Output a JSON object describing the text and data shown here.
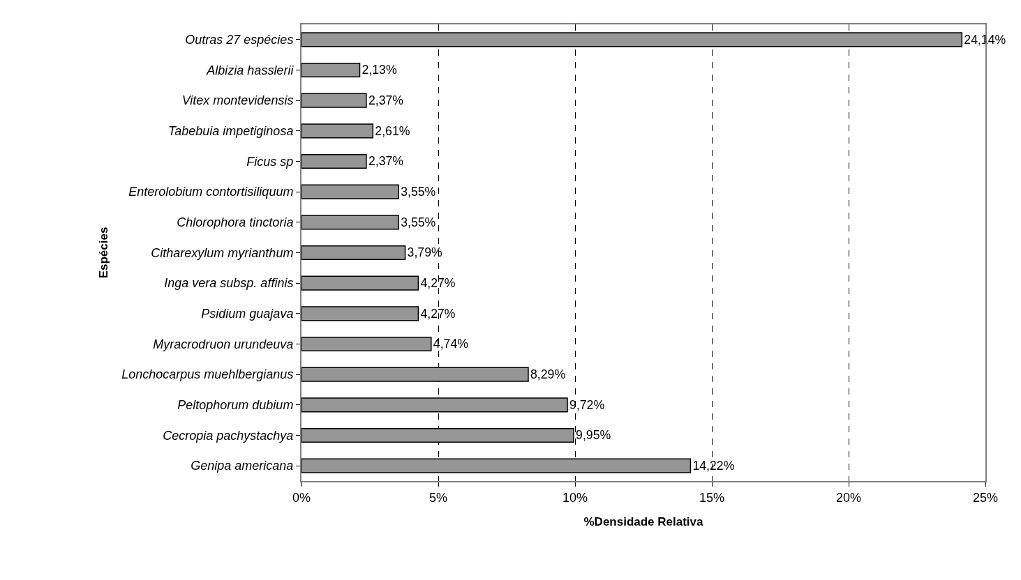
{
  "chart_data": {
    "type": "bar",
    "orientation": "horizontal",
    "xlabel": "%Densidade Relativa",
    "ylabel": "Espécies",
    "categories": [
      "Outras 27 espécies",
      "Albizia hasslerii",
      "Vitex montevidensis",
      "Tabebuia impetiginosa",
      "Ficus sp",
      "Enterolobium contortisiliquum",
      "Chlorophora tinctoria",
      "Citharexylum myrianthum",
      "Inga vera subsp. affinis",
      "Psidium guajava",
      "Myracrodruon urundeuva",
      "Lonchocarpus muehlbergianus",
      "Peltophorum dubium",
      "Cecropia pachystachya",
      "Genipa americana"
    ],
    "values": [
      24.14,
      2.13,
      2.37,
      2.61,
      2.37,
      3.55,
      3.55,
      3.79,
      4.27,
      4.27,
      4.74,
      8.29,
      9.72,
      9.95,
      14.22
    ],
    "value_labels": [
      "24,14%",
      "2,13%",
      "2,37%",
      "2,61%",
      "2,37%",
      "3,55%",
      "3,55%",
      "3,79%",
      "4,27%",
      "4,27%",
      "4,74%",
      "8,29%",
      "9,72%",
      "9,95%",
      "14,22%"
    ],
    "color": "#969696",
    "xlim": [
      0,
      25
    ],
    "xticks": [
      {
        "value": 0,
        "label": "0%"
      },
      {
        "value": 5,
        "label": "5%"
      },
      {
        "value": 10,
        "label": "10%"
      },
      {
        "value": 15,
        "label": "15%"
      },
      {
        "value": 20,
        "label": "20%"
      },
      {
        "value": 25,
        "label": "25%"
      }
    ],
    "grid": "x",
    "line_style": "dashed",
    "legend": false
  }
}
